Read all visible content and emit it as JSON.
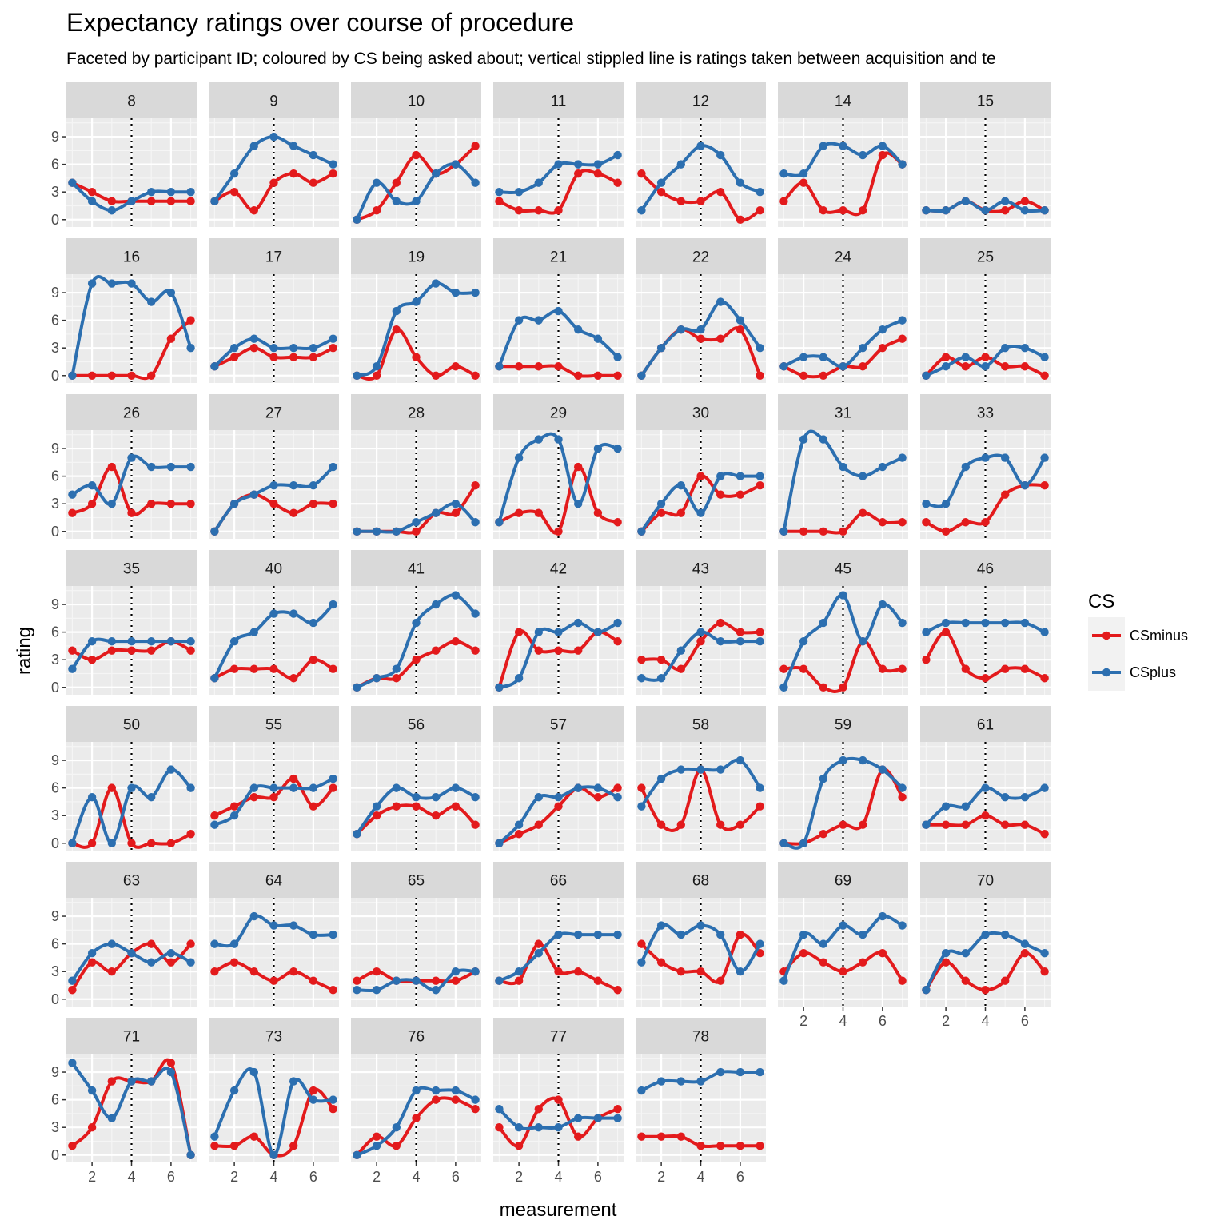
{
  "chart_data": {
    "type": "line",
    "title": "Expectancy ratings over course of procedure",
    "subtitle": "Faceted by participant ID; coloured by CS being asked about; vertical stippled line is ratings taken between acquisition and te",
    "xlabel": "measurement",
    "ylabel": "rating",
    "x": [
      1,
      2,
      3,
      4,
      5,
      6,
      7
    ],
    "xlim": [
      0.7,
      7.3
    ],
    "ylim": [
      -0.8,
      11
    ],
    "x_ticks": [
      2,
      4,
      6
    ],
    "y_ticks": [
      0,
      3,
      6,
      9
    ],
    "vline_x": 4,
    "grid": true,
    "legend": {
      "title": "CS",
      "position": "right",
      "entries": [
        {
          "name": "CSminus",
          "color": "#e31a1c"
        },
        {
          "name": "CSplus",
          "color": "#2c6fb0"
        }
      ]
    },
    "facets": [
      {
        "id": "8",
        "CSminus": [
          4,
          3,
          2,
          2,
          2,
          2,
          2
        ],
        "CSplus": [
          4,
          2,
          1,
          2,
          3,
          3,
          3
        ]
      },
      {
        "id": "9",
        "CSminus": [
          2,
          3,
          1,
          4,
          5,
          4,
          5
        ],
        "CSplus": [
          2,
          5,
          8,
          9,
          8,
          7,
          6
        ]
      },
      {
        "id": "10",
        "CSminus": [
          0,
          1,
          4,
          7,
          5,
          6,
          8
        ],
        "CSplus": [
          0,
          4,
          2,
          2,
          5,
          6,
          4
        ]
      },
      {
        "id": "11",
        "CSminus": [
          2,
          1,
          1,
          1,
          5,
          5,
          4
        ],
        "CSplus": [
          3,
          3,
          4,
          6,
          6,
          6,
          7
        ]
      },
      {
        "id": "12",
        "CSminus": [
          5,
          3,
          2,
          2,
          3,
          0,
          1
        ],
        "CSplus": [
          1,
          4,
          6,
          8,
          7,
          4,
          3
        ]
      },
      {
        "id": "14",
        "CSminus": [
          2,
          4,
          1,
          1,
          1,
          7,
          6
        ],
        "CSplus": [
          5,
          5,
          8,
          8,
          7,
          8,
          6
        ]
      },
      {
        "id": "15",
        "CSminus": [
          1,
          1,
          2,
          1,
          1,
          2,
          1
        ],
        "CSplus": [
          1,
          1,
          2,
          1,
          2,
          1,
          1
        ]
      },
      {
        "id": "16",
        "CSminus": [
          0,
          0,
          0,
          0,
          0,
          4,
          6
        ],
        "CSplus": [
          0,
          10,
          10,
          10,
          8,
          9,
          3
        ]
      },
      {
        "id": "17",
        "CSminus": [
          1,
          2,
          3,
          2,
          2,
          2,
          3
        ],
        "CSplus": [
          1,
          3,
          4,
          3,
          3,
          3,
          4
        ]
      },
      {
        "id": "19",
        "CSminus": [
          0,
          0,
          5,
          2,
          0,
          1,
          0
        ],
        "CSplus": [
          0,
          1,
          7,
          8,
          10,
          9,
          9
        ]
      },
      {
        "id": "21",
        "CSminus": [
          1,
          1,
          1,
          1,
          0,
          0,
          0
        ],
        "CSplus": [
          1,
          6,
          6,
          7,
          5,
          4,
          2
        ]
      },
      {
        "id": "22",
        "CSminus": [
          0,
          3,
          5,
          4,
          4,
          5,
          0
        ],
        "CSplus": [
          0,
          3,
          5,
          5,
          8,
          6,
          3
        ]
      },
      {
        "id": "24",
        "CSminus": [
          1,
          0,
          0,
          1,
          1,
          3,
          4
        ],
        "CSplus": [
          1,
          2,
          2,
          1,
          3,
          5,
          6
        ]
      },
      {
        "id": "25",
        "CSminus": [
          0,
          2,
          1,
          2,
          1,
          1,
          0
        ],
        "CSplus": [
          0,
          1,
          2,
          1,
          3,
          3,
          2
        ]
      },
      {
        "id": "26",
        "CSminus": [
          2,
          3,
          7,
          2,
          3,
          3,
          3
        ],
        "CSplus": [
          4,
          5,
          3,
          8,
          7,
          7,
          7
        ]
      },
      {
        "id": "27",
        "CSminus": [
          0,
          3,
          4,
          3,
          2,
          3,
          3
        ],
        "CSplus": [
          0,
          3,
          4,
          5,
          5,
          5,
          7
        ]
      },
      {
        "id": "28",
        "CSminus": [
          0,
          0,
          0,
          0,
          2,
          2,
          5
        ],
        "CSplus": [
          0,
          0,
          0,
          1,
          2,
          3,
          1
        ]
      },
      {
        "id": "29",
        "CSminus": [
          1,
          2,
          2,
          0,
          7,
          2,
          1
        ],
        "CSplus": [
          1,
          8,
          10,
          10,
          3,
          9,
          9
        ]
      },
      {
        "id": "30",
        "CSminus": [
          0,
          2,
          2,
          6,
          4,
          4,
          5
        ],
        "CSplus": [
          0,
          3,
          5,
          2,
          6,
          6,
          6
        ]
      },
      {
        "id": "31",
        "CSminus": [
          0,
          0,
          0,
          0,
          2,
          1,
          1
        ],
        "CSplus": [
          0,
          10,
          10,
          7,
          6,
          7,
          8
        ]
      },
      {
        "id": "33",
        "CSminus": [
          1,
          0,
          1,
          1,
          4,
          5,
          5
        ],
        "CSplus": [
          3,
          3,
          7,
          8,
          8,
          5,
          8
        ]
      },
      {
        "id": "35",
        "CSminus": [
          4,
          3,
          4,
          4,
          4,
          5,
          4
        ],
        "CSplus": [
          2,
          5,
          5,
          5,
          5,
          5,
          5
        ]
      },
      {
        "id": "40",
        "CSminus": [
          1,
          2,
          2,
          2,
          1,
          3,
          2
        ],
        "CSplus": [
          1,
          5,
          6,
          8,
          8,
          7,
          9
        ]
      },
      {
        "id": "41",
        "CSminus": [
          0,
          1,
          1,
          3,
          4,
          5,
          4
        ],
        "CSplus": [
          0,
          1,
          2,
          7,
          9,
          10,
          8
        ]
      },
      {
        "id": "42",
        "CSminus": [
          0,
          6,
          4,
          4,
          4,
          6,
          5
        ],
        "CSplus": [
          0,
          1,
          6,
          6,
          7,
          6,
          7
        ]
      },
      {
        "id": "43",
        "CSminus": [
          3,
          3,
          2,
          5,
          7,
          6,
          6
        ],
        "CSplus": [
          1,
          1,
          4,
          6,
          5,
          5,
          5
        ]
      },
      {
        "id": "45",
        "CSminus": [
          2,
          2,
          0,
          0,
          5,
          2,
          2
        ],
        "CSplus": [
          0,
          5,
          7,
          10,
          5,
          9,
          7
        ]
      },
      {
        "id": "46",
        "CSminus": [
          3,
          6,
          2,
          1,
          2,
          2,
          1
        ],
        "CSplus": [
          6,
          7,
          7,
          7,
          7,
          7,
          6
        ]
      },
      {
        "id": "50",
        "CSminus": [
          0,
          0,
          6,
          0,
          0,
          0,
          1
        ],
        "CSplus": [
          0,
          5,
          0,
          6,
          5,
          8,
          6
        ]
      },
      {
        "id": "55",
        "CSminus": [
          3,
          4,
          5,
          5,
          7,
          4,
          6
        ],
        "CSplus": [
          2,
          3,
          6,
          6,
          6,
          6,
          7
        ]
      },
      {
        "id": "56",
        "CSminus": [
          1,
          3,
          4,
          4,
          3,
          4,
          2
        ],
        "CSplus": [
          1,
          4,
          6,
          5,
          5,
          6,
          5
        ]
      },
      {
        "id": "57",
        "CSminus": [
          0,
          1,
          2,
          4,
          6,
          5,
          6
        ],
        "CSplus": [
          0,
          2,
          5,
          5,
          6,
          6,
          5
        ]
      },
      {
        "id": "58",
        "CSminus": [
          6,
          2,
          2,
          8,
          2,
          2,
          4
        ],
        "CSplus": [
          4,
          7,
          8,
          8,
          8,
          9,
          6
        ]
      },
      {
        "id": "59",
        "CSminus": [
          0,
          0,
          1,
          2,
          2,
          8,
          5
        ],
        "CSplus": [
          0,
          0,
          7,
          9,
          9,
          8,
          6
        ]
      },
      {
        "id": "61",
        "CSminus": [
          2,
          2,
          2,
          3,
          2,
          2,
          1
        ],
        "CSplus": [
          2,
          4,
          4,
          6,
          5,
          5,
          6
        ]
      },
      {
        "id": "63",
        "CSminus": [
          1,
          4,
          3,
          5,
          6,
          4,
          6
        ],
        "CSplus": [
          2,
          5,
          6,
          5,
          4,
          5,
          4
        ]
      },
      {
        "id": "64",
        "CSminus": [
          3,
          4,
          3,
          2,
          3,
          2,
          1
        ],
        "CSplus": [
          6,
          6,
          9,
          8,
          8,
          7,
          7
        ]
      },
      {
        "id": "65",
        "CSminus": [
          2,
          3,
          2,
          2,
          2,
          2,
          3
        ],
        "CSplus": [
          1,
          1,
          2,
          2,
          1,
          3,
          3
        ]
      },
      {
        "id": "66",
        "CSminus": [
          2,
          2,
          6,
          3,
          3,
          2,
          1
        ],
        "CSplus": [
          2,
          3,
          5,
          7,
          7,
          7,
          7
        ]
      },
      {
        "id": "68",
        "CSminus": [
          6,
          4,
          3,
          3,
          2,
          7,
          5
        ],
        "CSplus": [
          4,
          8,
          7,
          8,
          7,
          3,
          6
        ]
      },
      {
        "id": "69",
        "CSminus": [
          3,
          5,
          4,
          3,
          4,
          5,
          2
        ],
        "CSplus": [
          2,
          7,
          6,
          8,
          7,
          9,
          8
        ]
      },
      {
        "id": "70",
        "CSminus": [
          1,
          4,
          2,
          1,
          2,
          5,
          3
        ],
        "CSplus": [
          1,
          5,
          5,
          7,
          7,
          6,
          5
        ]
      },
      {
        "id": "71",
        "CSminus": [
          1,
          3,
          8,
          8,
          8,
          10,
          0
        ],
        "CSplus": [
          10,
          7,
          4,
          8,
          8,
          9,
          0
        ]
      },
      {
        "id": "73",
        "CSminus": [
          1,
          1,
          2,
          0,
          1,
          7,
          5
        ],
        "CSplus": [
          2,
          7,
          9,
          0,
          8,
          6,
          6
        ]
      },
      {
        "id": "76",
        "CSminus": [
          0,
          2,
          1,
          4,
          6,
          6,
          5
        ],
        "CSplus": [
          0,
          1,
          3,
          7,
          7,
          7,
          6
        ]
      },
      {
        "id": "77",
        "CSminus": [
          3,
          1,
          5,
          6,
          2,
          4,
          5
        ],
        "CSplus": [
          5,
          3,
          3,
          3,
          4,
          4,
          4
        ]
      },
      {
        "id": "78",
        "CSminus": [
          2,
          2,
          2,
          1,
          1,
          1,
          1
        ],
        "CSplus": [
          7,
          8,
          8,
          8,
          9,
          9,
          9
        ]
      }
    ]
  }
}
